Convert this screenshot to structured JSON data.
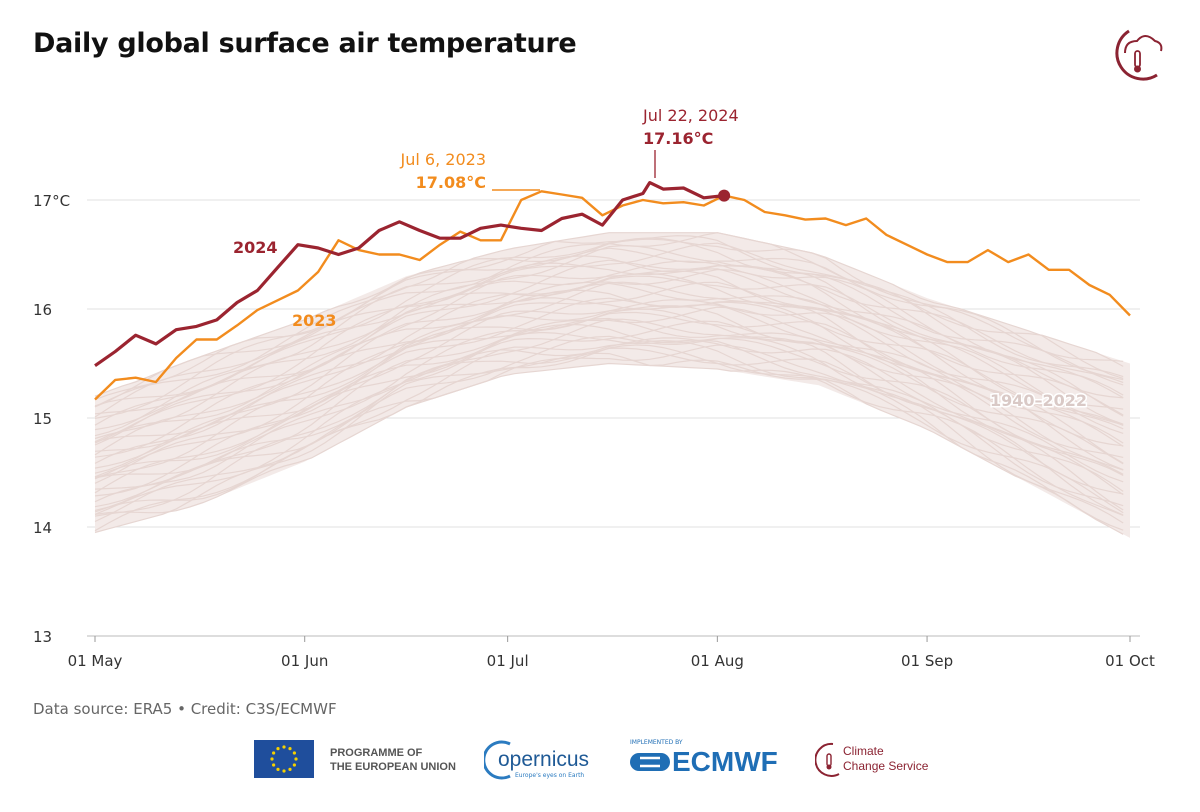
{
  "title": "Daily global surface air temperature",
  "source": "Data source: ERA5 • Credit: C3S/ECMWF",
  "logos": {
    "eu": "PROGRAMME OF THE EUROPEAN UNION",
    "eu_line1": "PROGRAMME OF",
    "eu_line2": "THE EUROPEAN UNION",
    "copernicus": "opernicus",
    "copernicus_tagline": "Europe's eyes on Earth",
    "ecmwf_implemented": "IMPLEMENTED BY",
    "ecmwf": "ECMWF",
    "c3s_line1": "Climate",
    "c3s_line2": "Change Service"
  },
  "colors": {
    "y2024": "#9b2430",
    "y2023": "#f28c1e",
    "historical": "#e6d6d2",
    "grid": "#e2e2e2"
  },
  "chart_data": {
    "type": "line",
    "title": "Daily global surface air temperature",
    "xlabel": "",
    "ylabel": "",
    "xlim": [
      "05-01",
      "10-01"
    ],
    "ylim": [
      13,
      17.4
    ],
    "x_ticks": [
      {
        "date": "05-01",
        "label": "01 May"
      },
      {
        "date": "06-01",
        "label": "01 Jun"
      },
      {
        "date": "07-01",
        "label": "01 Jul"
      },
      {
        "date": "08-01",
        "label": "01 Aug"
      },
      {
        "date": "09-01",
        "label": "01 Sep"
      },
      {
        "date": "10-01",
        "label": "01 Oct"
      }
    ],
    "y_ticks": [
      {
        "value": 13,
        "label": "13"
      },
      {
        "value": 14,
        "label": "14"
      },
      {
        "value": 15,
        "label": "15"
      },
      {
        "value": 16,
        "label": "16"
      },
      {
        "value": 17,
        "label": "17°C"
      }
    ],
    "grid": true,
    "series": [
      {
        "name": "2024",
        "color": "#9b2430",
        "dates": [
          "05-01",
          "05-04",
          "05-07",
          "05-10",
          "05-13",
          "05-16",
          "05-19",
          "05-22",
          "05-25",
          "05-28",
          "05-31",
          "06-03",
          "06-06",
          "06-09",
          "06-12",
          "06-15",
          "06-18",
          "06-21",
          "06-24",
          "06-27",
          "06-30",
          "07-03",
          "07-06",
          "07-09",
          "07-12",
          "07-15",
          "07-18",
          "07-21",
          "07-22",
          "07-24",
          "07-27",
          "07-30",
          "08-02"
        ],
        "values": [
          15.48,
          15.61,
          15.76,
          15.68,
          15.81,
          15.84,
          15.9,
          16.06,
          16.17,
          16.38,
          16.59,
          16.56,
          16.5,
          16.56,
          16.72,
          16.8,
          16.72,
          16.65,
          16.65,
          16.74,
          16.77,
          16.74,
          16.72,
          16.83,
          16.87,
          16.77,
          17.0,
          17.06,
          17.16,
          17.1,
          17.11,
          17.02,
          17.04
        ]
      },
      {
        "name": "2023",
        "color": "#f28c1e",
        "dates": [
          "05-01",
          "05-04",
          "05-07",
          "05-10",
          "05-13",
          "05-16",
          "05-19",
          "05-22",
          "05-25",
          "05-28",
          "05-31",
          "06-03",
          "06-06",
          "06-09",
          "06-12",
          "06-15",
          "06-18",
          "06-21",
          "06-24",
          "06-27",
          "06-30",
          "07-03",
          "07-06",
          "07-09",
          "07-12",
          "07-15",
          "07-18",
          "07-21",
          "07-24",
          "07-27",
          "07-30",
          "08-02",
          "08-05",
          "08-08",
          "08-11",
          "08-14",
          "08-17",
          "08-20",
          "08-23",
          "08-26",
          "08-29",
          "09-01",
          "09-04",
          "09-07",
          "09-10",
          "09-13",
          "09-16",
          "09-19",
          "09-22",
          "09-25",
          "09-28",
          "10-01"
        ],
        "values": [
          15.17,
          15.35,
          15.37,
          15.33,
          15.55,
          15.72,
          15.72,
          15.85,
          15.99,
          16.08,
          16.17,
          16.34,
          16.63,
          16.54,
          16.5,
          16.5,
          16.45,
          16.59,
          16.71,
          16.63,
          16.63,
          17.0,
          17.08,
          17.05,
          17.02,
          16.86,
          16.95,
          17.0,
          16.97,
          16.98,
          16.95,
          17.04,
          17.0,
          16.89,
          16.86,
          16.82,
          16.83,
          16.77,
          16.83,
          16.68,
          16.59,
          16.5,
          16.43,
          16.43,
          16.54,
          16.43,
          16.5,
          16.36,
          16.36,
          16.22,
          16.13,
          15.94
        ]
      },
      {
        "name": "1940–2022",
        "color": "#e6d6d2",
        "type": "range",
        "dates": [
          "05-01",
          "05-16",
          "06-01",
          "06-16",
          "07-01",
          "07-16",
          "08-01",
          "08-16",
          "09-01",
          "09-16",
          "10-01"
        ],
        "lower": [
          13.95,
          14.2,
          14.6,
          15.1,
          15.4,
          15.5,
          15.45,
          15.3,
          14.9,
          14.4,
          13.9
        ],
        "upper": [
          15.2,
          15.55,
          15.9,
          16.3,
          16.55,
          16.7,
          16.7,
          16.5,
          16.1,
          15.8,
          15.5
        ]
      }
    ],
    "annotations": [
      {
        "series": "2023",
        "date": "Jul 6, 2023",
        "value": "17.08°C"
      },
      {
        "series": "2024",
        "date": "Jul 22, 2024",
        "value": "17.16°C"
      }
    ],
    "series_labels": [
      {
        "text": "2024"
      },
      {
        "text": "2023"
      },
      {
        "text": "1940–2022"
      }
    ]
  }
}
